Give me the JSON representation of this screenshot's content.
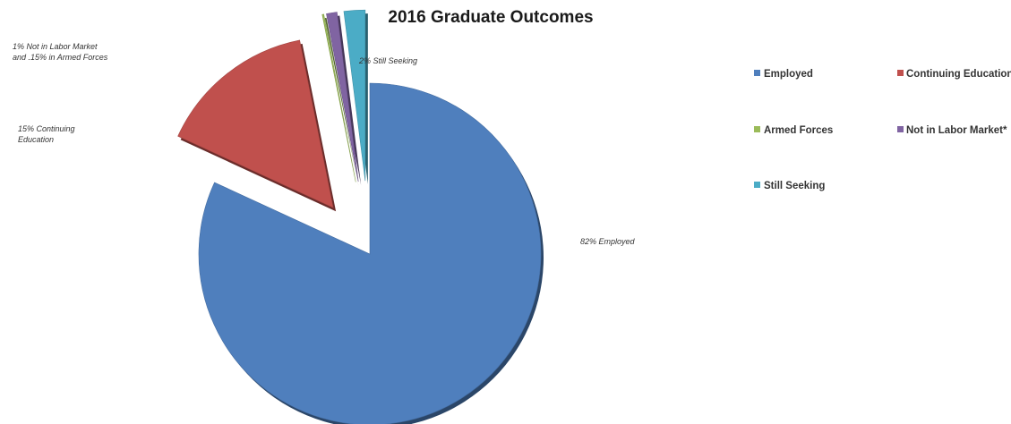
{
  "chart_data": {
    "type": "pie",
    "title": "2016 Graduate Outcomes",
    "slices": [
      {
        "name": "Employed",
        "value": 82,
        "color": "#4F7FBD"
      },
      {
        "name": "Continuing Education",
        "value": 15,
        "color": "#C0504D"
      },
      {
        "name": "Armed Forces",
        "value": 0.15,
        "color": "#9BBB59"
      },
      {
        "name": "Not in Labor Market*",
        "value": 1,
        "color": "#8064A2"
      },
      {
        "name": "Still Seeking",
        "value": 2,
        "color": "#4BACC6"
      }
    ],
    "data_labels": [
      {
        "lines": [
          "82% Employed"
        ]
      },
      {
        "lines": [
          "15% Continuing",
          "Education"
        ]
      },
      {
        "lines": [
          "1% Not in Labor Market",
          "and .15% in Armed Forces"
        ]
      },
      {
        "lines": [
          "2% Still Seeking"
        ]
      }
    ],
    "legend_position": "right"
  }
}
